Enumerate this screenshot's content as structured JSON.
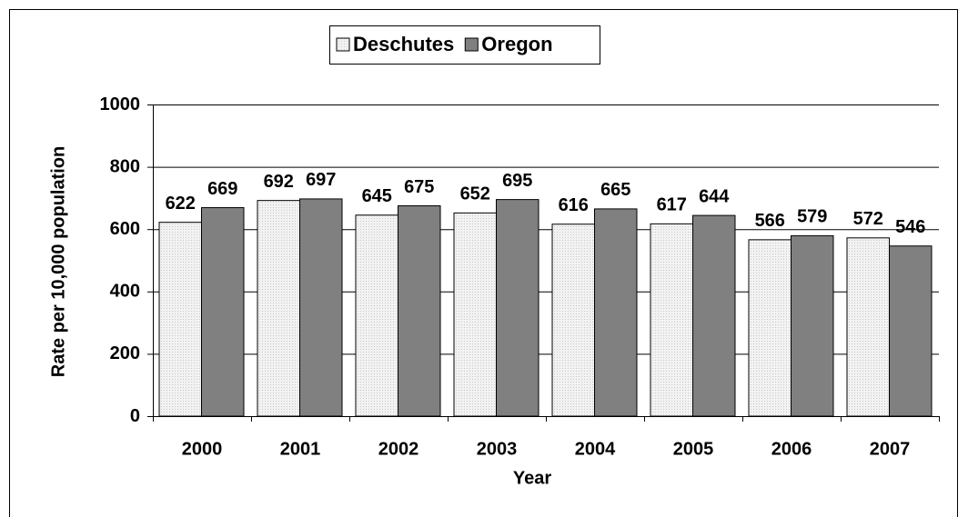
{
  "chart_data": {
    "type": "bar",
    "categories": [
      "2000",
      "2001",
      "2002",
      "2003",
      "2004",
      "2005",
      "2006",
      "2007"
    ],
    "series": [
      {
        "name": "Deschutes",
        "color": "#e6e6e6",
        "values": [
          622,
          692,
          645,
          652,
          616,
          617,
          566,
          572
        ]
      },
      {
        "name": "Oregon",
        "color": "#808080",
        "values": [
          669,
          697,
          675,
          695,
          665,
          644,
          579,
          546
        ]
      }
    ],
    "x_label": "Year",
    "y_label": "Rate per 10,000 population",
    "ylim": [
      0,
      1000
    ],
    "yticks": [
      0,
      200,
      400,
      600,
      800,
      1000
    ],
    "grid": true,
    "legend": "top"
  }
}
